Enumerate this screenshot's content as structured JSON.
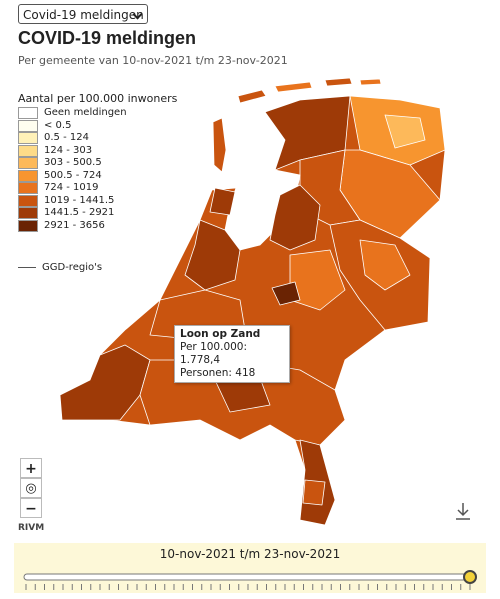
{
  "header": {
    "select": "Covid-19 meldingen",
    "title": "COVID-19 meldingen",
    "subtitle": "Per gemeente van 10-nov-2021 t/m 23-nov-2021"
  },
  "legend": {
    "title": "Aantal per 100.000 inwoners",
    "items": [
      {
        "label": "Geen meldingen",
        "color": "#ffffff"
      },
      {
        "label": "< 0.5",
        "color": "#fffef0"
      },
      {
        "label": "0.5 - 124",
        "color": "#fff1b8"
      },
      {
        "label": "124 - 303",
        "color": "#fedb88"
      },
      {
        "label": "303 - 500.5",
        "color": "#fdb95a"
      },
      {
        "label": "500.5 - 724",
        "color": "#f7952f"
      },
      {
        "label": "724 - 1019",
        "color": "#e8731d"
      },
      {
        "label": "1019 - 1441.5",
        "color": "#c9540f"
      },
      {
        "label": "1441.5 - 2921",
        "color": "#9e3a07"
      },
      {
        "label": "2921 - 3656",
        "color": "#6a2303"
      }
    ],
    "ggd": "GGD-regio's"
  },
  "tooltip": {
    "name": "Loon op Zand",
    "per100k": "Per 100.000: 1.778,4",
    "persons": "Personen: 418"
  },
  "controls": {
    "zoom_in": "+",
    "locate": "◎",
    "zoom_out": "−",
    "source": "RIVM"
  },
  "timeline": {
    "label": "10-nov-2021 t/m 23-nov-2021"
  }
}
